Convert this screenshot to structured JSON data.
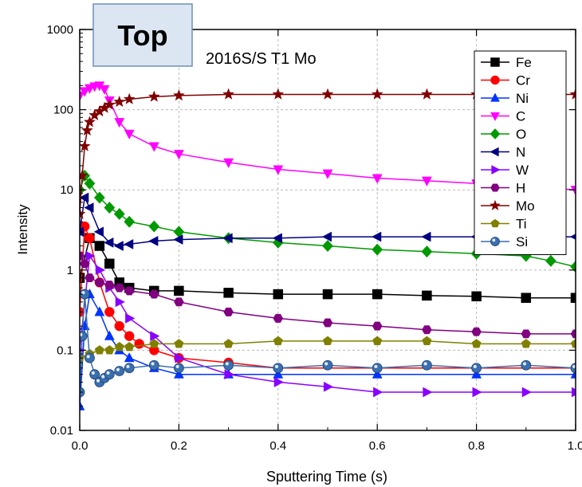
{
  "chart_data": {
    "type": "scatter",
    "title": "2016S/S T1 Mo",
    "badge": "Top",
    "xlabel": "Sputtering Time (s)",
    "ylabel": "Intensity",
    "xlim": [
      0,
      1.0
    ],
    "ylim": [
      0.01,
      1000
    ],
    "yscale": "log",
    "grid": true,
    "legend_position": "top-right",
    "x_ticks": [
      0,
      0.2,
      0.4,
      0.6,
      0.8,
      1.0
    ],
    "x_tick_labels": [
      "0.0",
      "0.2",
      "0.4",
      "0.6",
      "0.8",
      "1.0"
    ],
    "y_ticks": [
      0.01,
      0.1,
      1,
      10,
      100,
      1000
    ],
    "y_tick_labels": [
      "0.01",
      "0.1",
      "1",
      "10",
      "100",
      "1000"
    ],
    "series": [
      {
        "name": "Fe",
        "color": "#000000",
        "marker": "square",
        "x": [
          0,
          0.02,
          0.04,
          0.06,
          0.08,
          0.1,
          0.15,
          0.2,
          0.3,
          0.4,
          0.5,
          0.6,
          0.7,
          0.8,
          0.9,
          1.0
        ],
        "y": [
          0.8,
          2.5,
          2.0,
          1.2,
          0.7,
          0.6,
          0.55,
          0.55,
          0.52,
          0.5,
          0.5,
          0.5,
          0.48,
          0.47,
          0.45,
          0.45
        ]
      },
      {
        "name": "Cr",
        "color": "#ff0000",
        "marker": "circle",
        "x": [
          0,
          0.01,
          0.02,
          0.04,
          0.06,
          0.08,
          0.1,
          0.12,
          0.15,
          0.2,
          0.3,
          0.4,
          0.6,
          0.8,
          1.0
        ],
        "y": [
          0.3,
          3.5,
          2.5,
          0.7,
          0.3,
          0.2,
          0.15,
          0.12,
          0.1,
          0.08,
          0.07,
          0.06,
          0.06,
          0.06,
          0.06
        ]
      },
      {
        "name": "Ni",
        "color": "#0033ff",
        "marker": "triangle-up",
        "x": [
          0,
          0.01,
          0.02,
          0.04,
          0.06,
          0.08,
          0.1,
          0.15,
          0.2,
          0.3,
          0.4,
          0.6,
          0.8,
          1.0
        ],
        "y": [
          0.02,
          0.2,
          0.5,
          0.3,
          0.15,
          0.1,
          0.08,
          0.06,
          0.05,
          0.05,
          0.05,
          0.05,
          0.05,
          0.05
        ]
      },
      {
        "name": "C",
        "color": "#ff00ff",
        "marker": "triangle-down",
        "x": [
          0,
          0.01,
          0.02,
          0.03,
          0.04,
          0.05,
          0.06,
          0.08,
          0.1,
          0.15,
          0.2,
          0.3,
          0.4,
          0.5,
          0.6,
          0.7,
          0.8,
          0.9,
          1.0
        ],
        "y": [
          150,
          170,
          185,
          195,
          200,
          180,
          130,
          70,
          50,
          35,
          28,
          22,
          18,
          16,
          14,
          13,
          12,
          11,
          10
        ]
      },
      {
        "name": "O",
        "color": "#009900",
        "marker": "diamond",
        "x": [
          0,
          0.01,
          0.02,
          0.04,
          0.06,
          0.08,
          0.1,
          0.15,
          0.2,
          0.3,
          0.4,
          0.5,
          0.6,
          0.7,
          0.8,
          0.9,
          0.95,
          1.0
        ],
        "y": [
          10,
          15,
          12,
          8,
          6,
          5,
          4,
          3.5,
          3,
          2.5,
          2.2,
          2.0,
          1.8,
          1.7,
          1.6,
          1.5,
          1.3,
          1.1
        ]
      },
      {
        "name": "N",
        "color": "#000080",
        "marker": "triangle-left",
        "x": [
          0,
          0.01,
          0.02,
          0.04,
          0.06,
          0.08,
          0.1,
          0.15,
          0.2,
          0.3,
          0.4,
          0.5,
          0.6,
          0.7,
          0.8,
          0.9,
          1.0
        ],
        "y": [
          3,
          8,
          6,
          3,
          2.2,
          2.0,
          2.1,
          2.3,
          2.4,
          2.5,
          2.5,
          2.6,
          2.6,
          2.6,
          2.6,
          2.6,
          2.6
        ]
      },
      {
        "name": "W",
        "color": "#8800ff",
        "marker": "triangle-right",
        "x": [
          0,
          0.02,
          0.04,
          0.06,
          0.08,
          0.1,
          0.15,
          0.2,
          0.3,
          0.4,
          0.5,
          0.6,
          0.7,
          0.8,
          0.9,
          1.0
        ],
        "y": [
          0.1,
          1.5,
          1.0,
          0.6,
          0.4,
          0.25,
          0.15,
          0.08,
          0.05,
          0.04,
          0.035,
          0.03,
          0.03,
          0.03,
          0.03,
          0.03
        ]
      },
      {
        "name": "H",
        "color": "#800080",
        "marker": "hexagon",
        "x": [
          0,
          0.01,
          0.02,
          0.04,
          0.06,
          0.08,
          0.1,
          0.15,
          0.2,
          0.3,
          0.4,
          0.5,
          0.6,
          0.7,
          0.8,
          0.9,
          1.0
        ],
        "y": [
          1.5,
          1.2,
          0.8,
          0.7,
          0.65,
          0.6,
          0.55,
          0.5,
          0.4,
          0.3,
          0.25,
          0.22,
          0.2,
          0.18,
          0.17,
          0.16,
          0.16
        ]
      },
      {
        "name": "Mo",
        "color": "#800000",
        "marker": "star",
        "x": [
          0,
          0.005,
          0.01,
          0.015,
          0.02,
          0.03,
          0.04,
          0.05,
          0.06,
          0.08,
          0.1,
          0.15,
          0.2,
          0.3,
          0.4,
          0.5,
          0.6,
          0.7,
          0.8,
          0.9,
          1.0
        ],
        "y": [
          5,
          15,
          35,
          55,
          70,
          85,
          95,
          105,
          115,
          125,
          135,
          145,
          150,
          155,
          155,
          155,
          155,
          155,
          155,
          155,
          155
        ]
      },
      {
        "name": "Ti",
        "color": "#808000",
        "marker": "pentagon",
        "x": [
          0,
          0.02,
          0.04,
          0.06,
          0.08,
          0.1,
          0.15,
          0.2,
          0.3,
          0.4,
          0.5,
          0.6,
          0.7,
          0.8,
          0.9,
          1.0
        ],
        "y": [
          0.08,
          0.09,
          0.1,
          0.1,
          0.11,
          0.11,
          0.12,
          0.12,
          0.12,
          0.13,
          0.13,
          0.13,
          0.13,
          0.12,
          0.12,
          0.12
        ]
      },
      {
        "name": "Si",
        "color": "#3a6fb0",
        "marker": "sphere",
        "x": [
          0,
          0.005,
          0.01,
          0.02,
          0.03,
          0.04,
          0.05,
          0.06,
          0.08,
          0.1,
          0.15,
          0.2,
          0.3,
          0.4,
          0.5,
          0.6,
          0.7,
          0.8,
          0.9,
          1.0
        ],
        "y": [
          0.03,
          0.15,
          0.5,
          0.08,
          0.05,
          0.04,
          0.045,
          0.05,
          0.055,
          0.06,
          0.065,
          0.06,
          0.065,
          0.06,
          0.065,
          0.06,
          0.065,
          0.06,
          0.065,
          0.06
        ]
      }
    ]
  }
}
